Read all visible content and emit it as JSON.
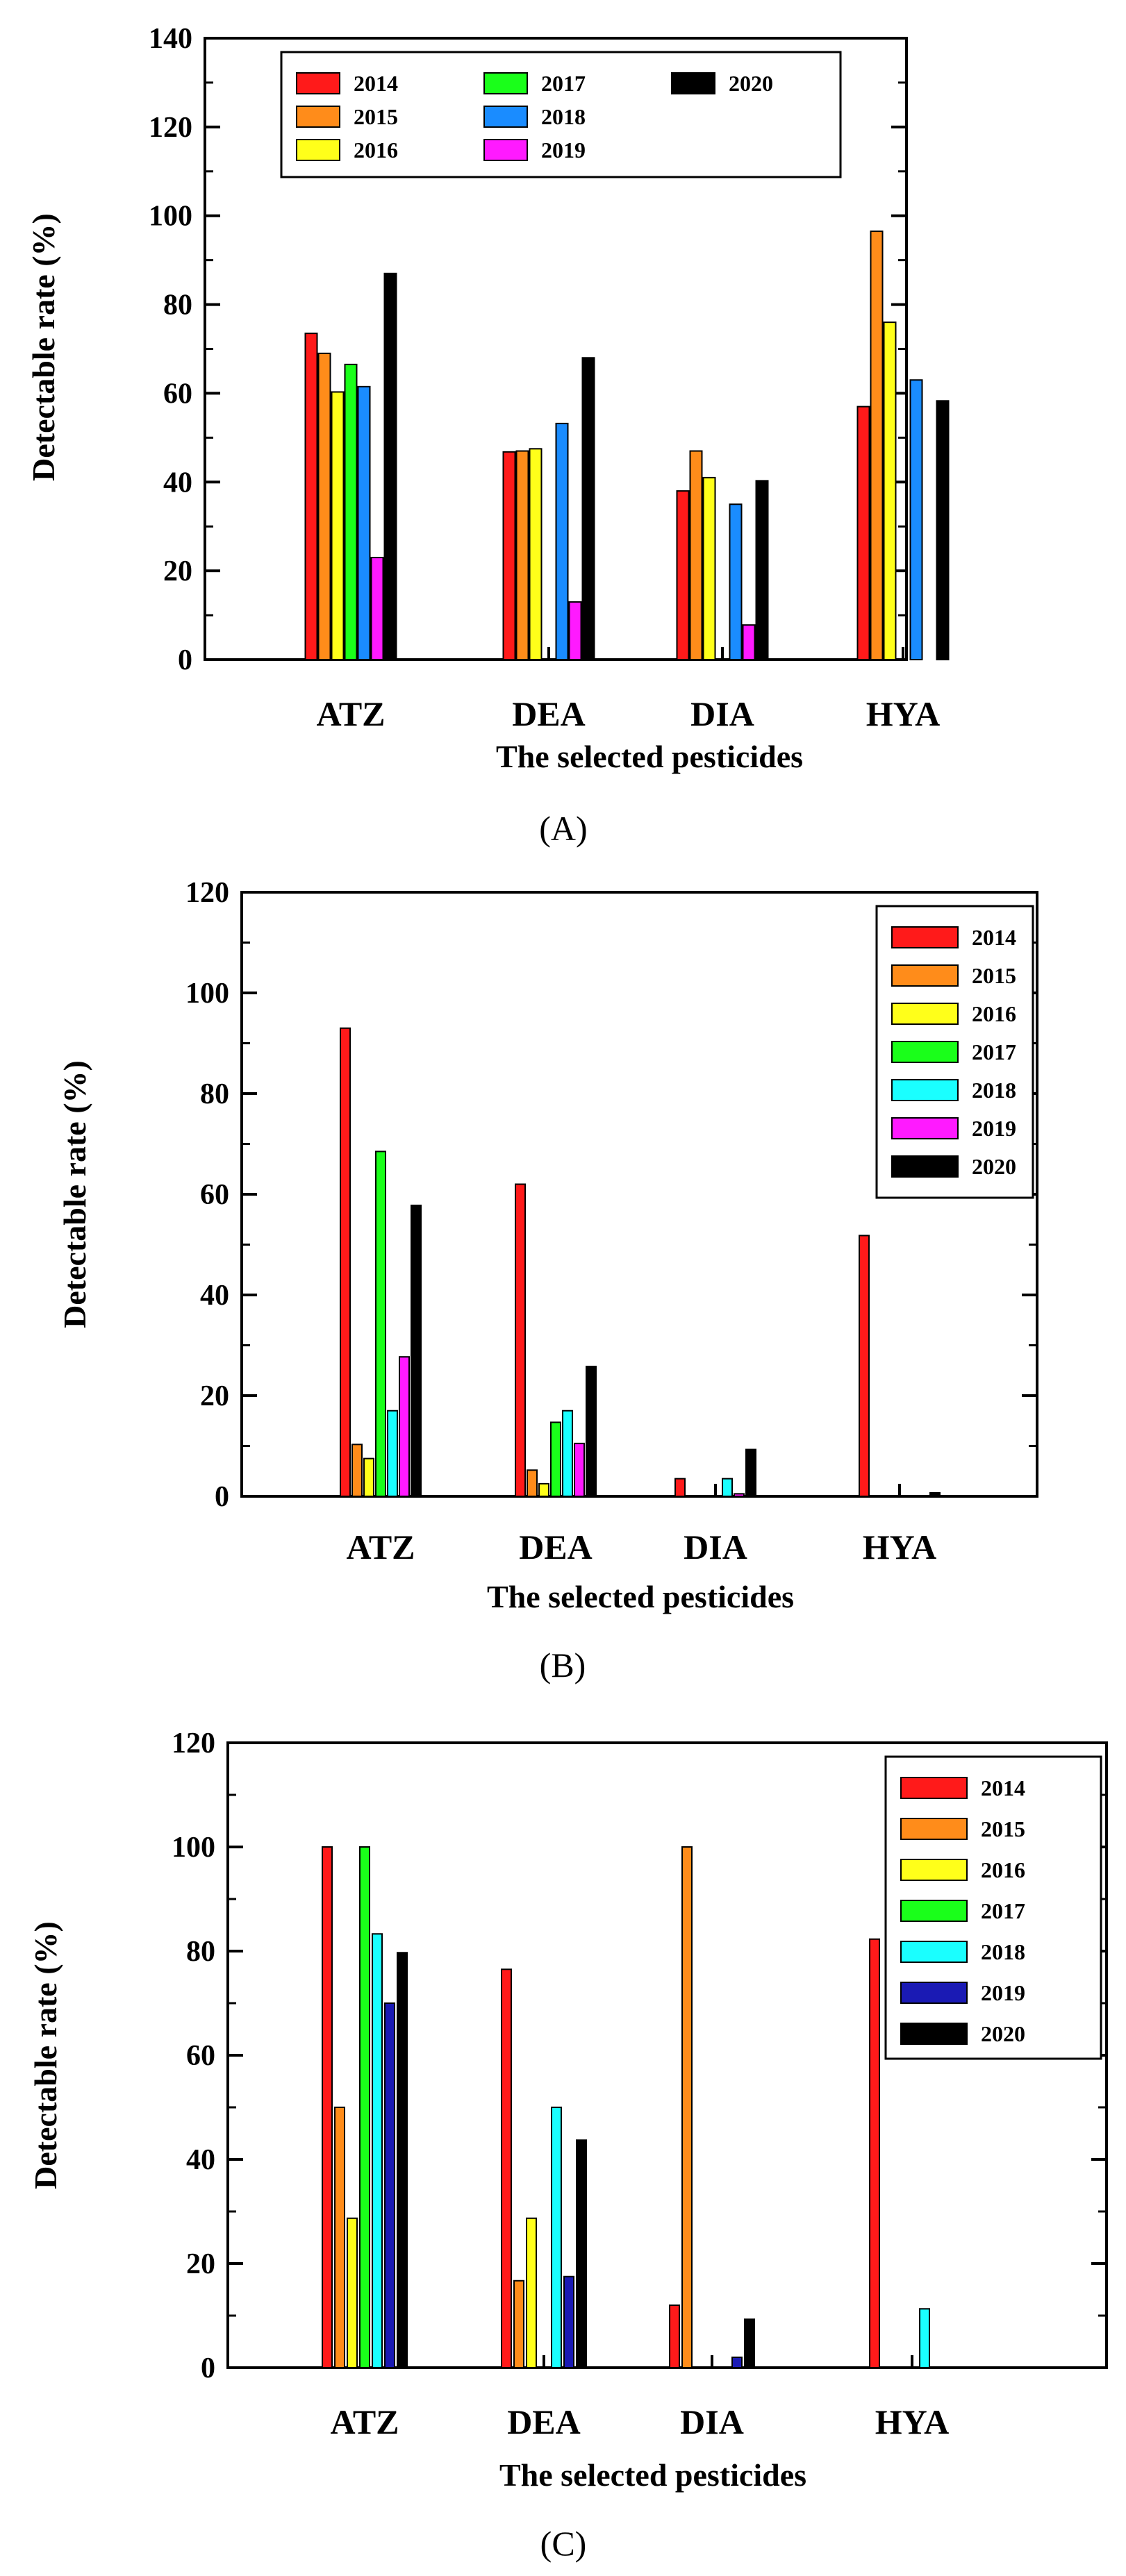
{
  "chart_data": [
    {
      "type": "bar",
      "panel_label": "(A)",
      "xlabel": "The selected pesticides",
      "ylabel": "Detectable rate (%)",
      "ylim": [
        0,
        140
      ],
      "yticks": [
        0,
        20,
        40,
        60,
        80,
        100,
        120,
        140
      ],
      "categories": [
        "ATZ",
        "DEA",
        "DIA",
        "HYA"
      ],
      "legend_position": "top-left, 3 columns",
      "series": [
        {
          "name": "2014",
          "color": "#ff1a1a",
          "values": [
            73.5,
            46.8,
            38.0,
            57.0
          ]
        },
        {
          "name": "2015",
          "color": "#ff8c1a",
          "values": [
            69.0,
            47.0,
            47.0,
            96.5
          ]
        },
        {
          "name": "2016",
          "color": "#ffff1a",
          "values": [
            60.3,
            47.5,
            41.0,
            76.0
          ]
        },
        {
          "name": "2017",
          "color": "#1aff1a",
          "values": [
            66.5,
            null,
            null,
            null
          ]
        },
        {
          "name": "2018",
          "color": "#1a8cff",
          "values": [
            61.5,
            53.2,
            35.0,
            63.0
          ]
        },
        {
          "name": "2019",
          "color": "#ff1aff",
          "values": [
            23.0,
            13.0,
            7.8,
            null
          ]
        },
        {
          "name": "2020",
          "color": "#000000",
          "values": [
            87.0,
            68.0,
            40.3,
            58.3
          ]
        }
      ]
    },
    {
      "type": "bar",
      "panel_label": "(B)",
      "xlabel": "The selected pesticides",
      "ylabel": "Detectable rate (%)",
      "ylim": [
        0,
        120
      ],
      "yticks": [
        0,
        20,
        40,
        60,
        80,
        100,
        120
      ],
      "categories": [
        "ATZ",
        "DEA",
        "DIA",
        "HYA"
      ],
      "legend_position": "top-right",
      "series": [
        {
          "name": "2014",
          "color": "#ff1a1a",
          "values": [
            93.0,
            62.0,
            3.5,
            51.8
          ]
        },
        {
          "name": "2015",
          "color": "#ff8c1a",
          "values": [
            10.3,
            5.2,
            null,
            null
          ]
        },
        {
          "name": "2016",
          "color": "#ffff1a",
          "values": [
            7.5,
            2.5,
            null,
            null
          ]
        },
        {
          "name": "2017",
          "color": "#1aff1a",
          "values": [
            68.5,
            14.7,
            null,
            null
          ]
        },
        {
          "name": "2018",
          "color": "#1affff",
          "values": [
            17.0,
            17.0,
            3.5,
            null
          ]
        },
        {
          "name": "2019",
          "color": "#ff1aff",
          "values": [
            27.7,
            10.5,
            0.5,
            null
          ]
        },
        {
          "name": "2020",
          "color": "#000000",
          "values": [
            57.8,
            25.8,
            9.3,
            0.7
          ]
        }
      ]
    },
    {
      "type": "bar",
      "panel_label": "(C)",
      "xlabel": "The selected pesticides",
      "ylabel": "Detectable rate (%)",
      "ylim": [
        0,
        120
      ],
      "yticks": [
        0,
        20,
        40,
        60,
        80,
        100,
        120
      ],
      "categories": [
        "ATZ",
        "DEA",
        "DIA",
        "HYA"
      ],
      "legend_position": "top-right",
      "series": [
        {
          "name": "2014",
          "color": "#ff1a1a",
          "values": [
            100.0,
            76.5,
            12.0,
            82.3
          ]
        },
        {
          "name": "2015",
          "color": "#ff8c1a",
          "values": [
            50.0,
            16.7,
            100.0,
            null
          ]
        },
        {
          "name": "2016",
          "color": "#ffff1a",
          "values": [
            28.7,
            28.7,
            null,
            null
          ]
        },
        {
          "name": "2017",
          "color": "#1aff1a",
          "values": [
            100.0,
            null,
            null,
            null
          ]
        },
        {
          "name": "2018",
          "color": "#1affff",
          "values": [
            83.3,
            50.0,
            null,
            11.3
          ]
        },
        {
          "name": "2019",
          "color": "#1a1ab4",
          "values": [
            70.0,
            17.5,
            2.0,
            null
          ]
        },
        {
          "name": "2020",
          "color": "#000000",
          "values": [
            79.7,
            43.7,
            9.3,
            null
          ]
        }
      ]
    }
  ]
}
